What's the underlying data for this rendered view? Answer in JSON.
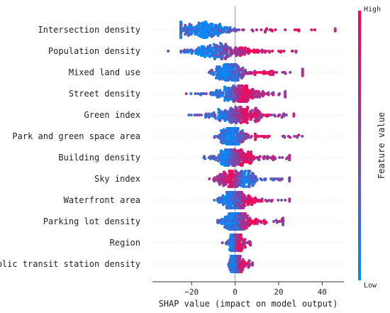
{
  "chart_data": {
    "type": "scatter",
    "subtype": "shap-beeswarm",
    "title": "",
    "xlabel": "SHAP value (impact on model output)",
    "ylabel": "",
    "xlim": [
      -38,
      50
    ],
    "xticks": [
      -20,
      0,
      20,
      40
    ],
    "zero_line": true,
    "legend": {
      "position": "right",
      "title": "Feature value",
      "high_label": "High",
      "low_label": "Low",
      "high_color": "#ff0052",
      "low_color": "#008bfb"
    },
    "features": [
      {
        "name": "Intersection density",
        "min": -25,
        "max": 46,
        "peak": -15,
        "width": 9,
        "low_center": -14,
        "high_center": 20,
        "spread_right": 13
      },
      {
        "name": "Population density",
        "min": -33,
        "max": 28,
        "peak": -8,
        "width": 10,
        "low_center": -14,
        "high_center": 8,
        "spread_right": 8
      },
      {
        "name": "Mixed land use",
        "min": -17,
        "max": 31,
        "peak": -3,
        "width": 5,
        "low_center": -4,
        "high_center": 12,
        "spread_right": 7
      },
      {
        "name": "Street density",
        "min": -32,
        "max": 23,
        "peak": 1,
        "width": 8,
        "low_center": -5,
        "high_center": 5,
        "spread_right": 5
      },
      {
        "name": "Green index",
        "min": -24,
        "max": 27,
        "peak": 0,
        "width": 8,
        "low_center": -6,
        "high_center": 5,
        "spread_right": 6
      },
      {
        "name": "Park and green space area",
        "min": -10,
        "max": 32,
        "peak": -1,
        "width": 4,
        "low_center": -2,
        "high_center": 12,
        "spread_right": 8
      },
      {
        "name": "Building density",
        "min": -17,
        "max": 25,
        "peak": -1,
        "width": 6,
        "low_center": -5,
        "high_center": 5,
        "spread_right": 6
      },
      {
        "name": "Sky index",
        "min": -16,
        "max": 25,
        "peak": 0,
        "width": 6,
        "low_center": 4,
        "high_center": -2,
        "spread_right": 4
      },
      {
        "name": "Waterfront area",
        "min": -10,
        "max": 25,
        "peak": 0,
        "width": 5,
        "low_center": -3,
        "high_center": 7,
        "spread_right": 5
      },
      {
        "name": "Parking lot density",
        "min": -8,
        "max": 22,
        "peak": 0,
        "width": 4,
        "low_center": -2,
        "high_center": 8,
        "spread_right": 5
      },
      {
        "name": "Region",
        "min": -7,
        "max": 7,
        "peak": 0,
        "width": 2,
        "low_center": -2,
        "high_center": 2,
        "spread_right": 2
      },
      {
        "name": "Public transit station density",
        "min": -3,
        "max": 8,
        "peak": 0,
        "width": 1.5,
        "low_center": -1,
        "high_center": 4,
        "spread_right": 2
      }
    ]
  }
}
